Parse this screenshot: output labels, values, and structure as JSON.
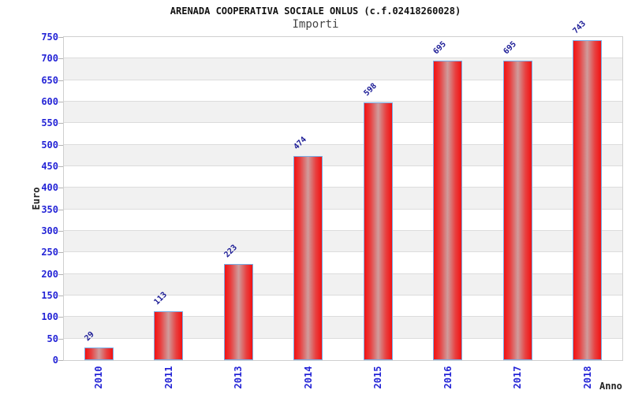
{
  "chart_data": {
    "type": "bar",
    "title": "ARENADA COOPERATIVA SOCIALE ONLUS (c.f.02418260028)",
    "subtitle": "Importi",
    "categories": [
      "2010",
      "2011",
      "2013",
      "2014",
      "2015",
      "2016",
      "2017",
      "2018"
    ],
    "values": [
      29,
      113,
      223,
      474,
      598,
      695,
      695,
      743
    ],
    "xlabel": "Anno",
    "ylabel": "Euro",
    "ylim": [
      0,
      750
    ],
    "ytick_step": 50,
    "grid": true,
    "legend_position": "none",
    "colors": {
      "bar_edge_red": "#f21212",
      "bar_mid_red": "#e84040",
      "bar_highlight": "#cf9c9c",
      "bar_border": "#76ade6",
      "axis_label_blue": "#2424d6",
      "value_label_blue": "#1c1c96",
      "band_even": "#ffffff",
      "band_odd": "#f1f1f1",
      "gridline": "#dcdcdc",
      "plot_border": "#cfcfcf"
    }
  }
}
